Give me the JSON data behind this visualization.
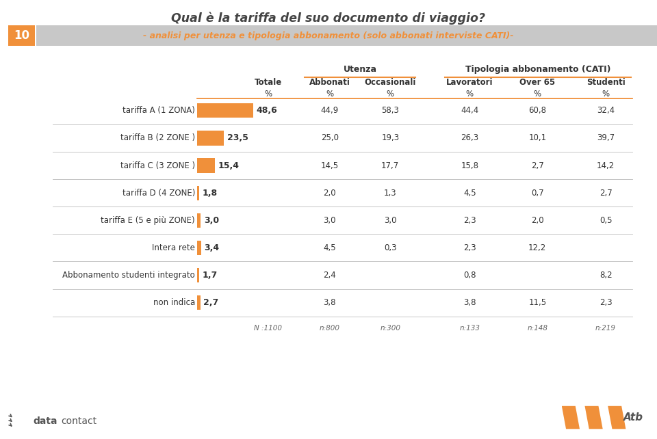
{
  "title": "Qual è la tariffa del suo documento di viaggio?",
  "subtitle_number": "10",
  "subtitle_main": "- analisi per utenza e tipologia abbonamento (",
  "subtitle_italic": "solo abbonati interviste CATI",
  "subtitle_end": ")-",
  "bg_color": "#ffffff",
  "header_bg": "#c8c8c8",
  "orange": "#f0903a",
  "rows": [
    {
      "label": "tariffa A (1 ZONA)",
      "totale": "48,6",
      "abbonati": "44,9",
      "occasionali": "58,3",
      "lavoratori": "44,4",
      "over65": "60,8",
      "studenti": "32,4",
      "totale_num": 48.6
    },
    {
      "label": "tariffa B (2 ZONE )",
      "totale": "23,5",
      "abbonati": "25,0",
      "occasionali": "19,3",
      "lavoratori": "26,3",
      "over65": "10,1",
      "studenti": "39,7",
      "totale_num": 23.5
    },
    {
      "label": "tariffa C (3 ZONE )",
      "totale": "15,4",
      "abbonati": "14,5",
      "occasionali": "17,7",
      "lavoratori": "15,8",
      "over65": "2,7",
      "studenti": "14,2",
      "totale_num": 15.4
    },
    {
      "label": "tariffa D (4 ZONE)",
      "totale": "1,8",
      "abbonati": "2,0",
      "occasionali": "1,3",
      "lavoratori": "4,5",
      "over65": "0,7",
      "studenti": "2,7",
      "totale_num": 1.8
    },
    {
      "label": "tariffa E (5 e più ZONE)",
      "totale": "3,0",
      "abbonati": "3,0",
      "occasionali": "3,0",
      "lavoratori": "2,3",
      "over65": "2,0",
      "studenti": "0,5",
      "totale_num": 3.0
    },
    {
      "label": "Intera rete",
      "totale": "3,4",
      "abbonati": "4,5",
      "occasionali": "0,3",
      "lavoratori": "2,3",
      "over65": "12,2",
      "studenti": null,
      "totale_num": 3.4
    },
    {
      "label": "Abbonamento studenti integrato",
      "totale": "1,7",
      "abbonati": "2,4",
      "occasionali": null,
      "lavoratori": "0,8",
      "over65": null,
      "studenti": "8,2",
      "totale_num": 1.7
    },
    {
      "label": "non indica",
      "totale": "2,7",
      "abbonati": "3,8",
      "occasionali": null,
      "lavoratori": "3,8",
      "over65": "11,5",
      "studenti": "2,3",
      "totale_num": 2.7
    }
  ],
  "n_totale": "N :1100",
  "n_abbonati": "n:800",
  "n_occasionali": "n:300",
  "n_lavoratori": "n:133",
  "n_over65": "n:148",
  "n_studenti": "n:219",
  "max_val": 48.6
}
